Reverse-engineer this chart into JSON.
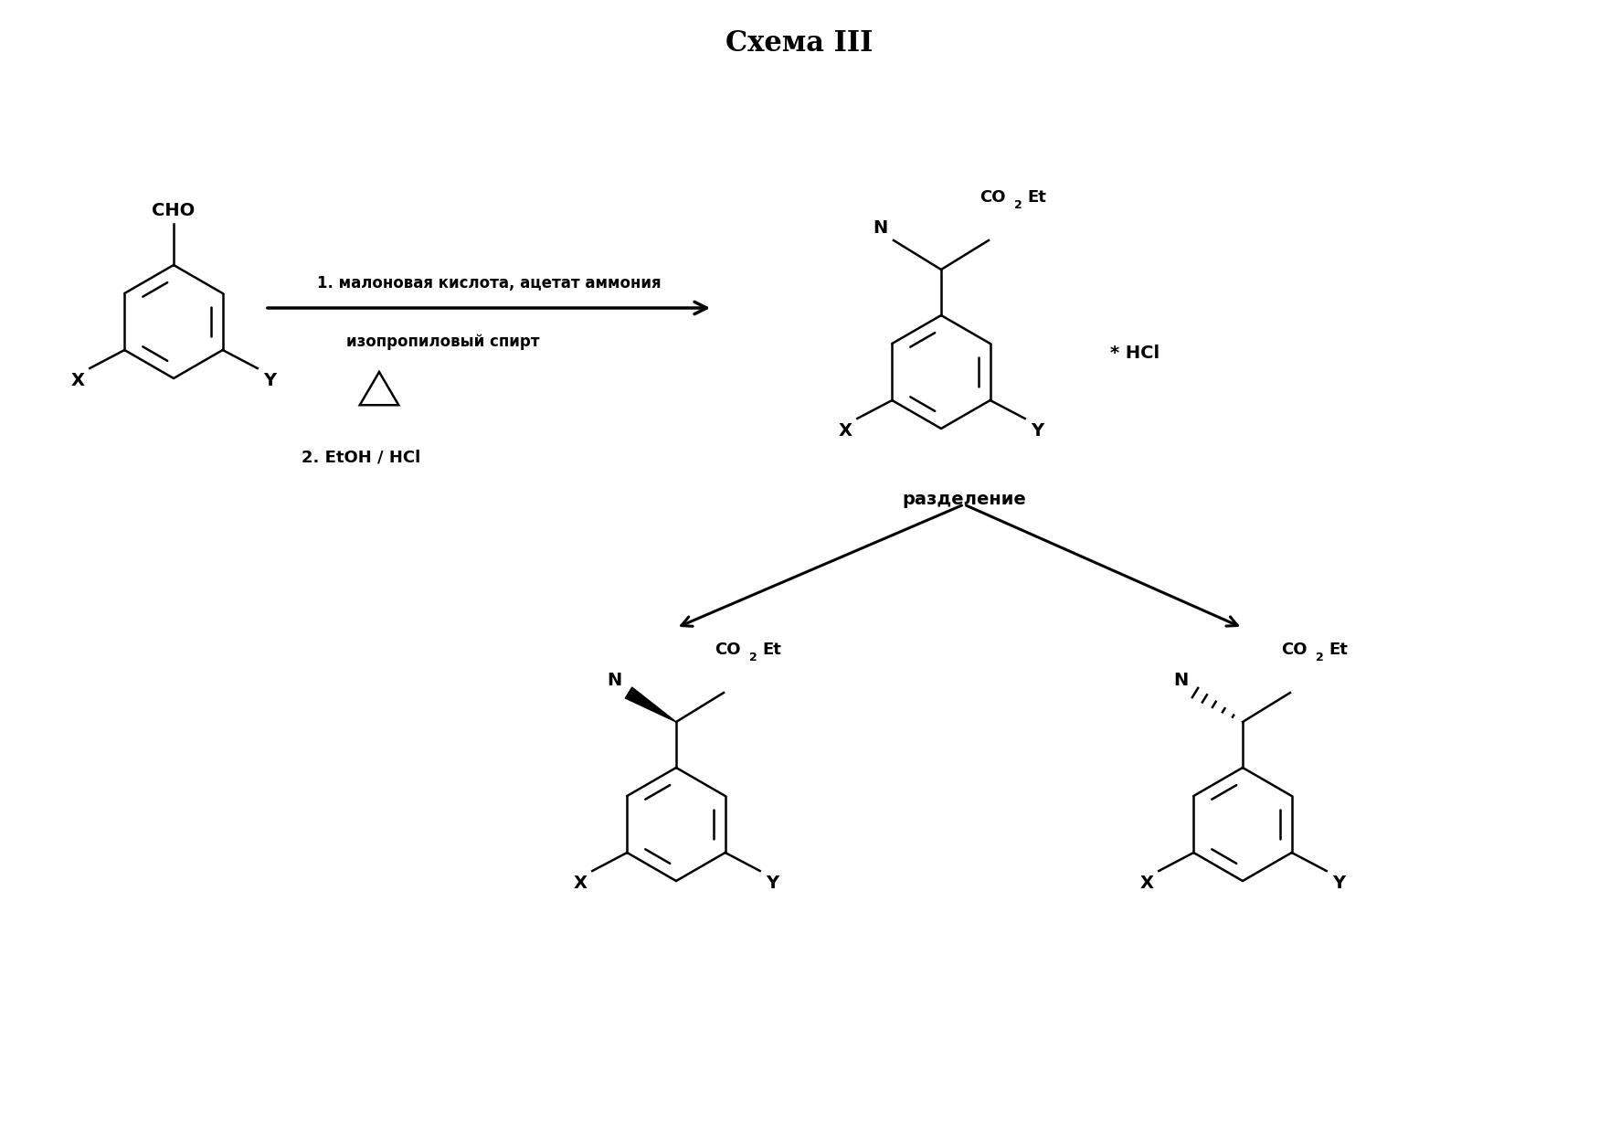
{
  "title": "Схема III",
  "title_fontsize": 22,
  "bg_color": "#ffffff",
  "text_color": "#000000",
  "arrow_color": "#000000",
  "reaction_label_line1": "1. малоновая кислота, ацетат аммония",
  "reaction_label_line2": "изопропиловый спирт",
  "reaction_label_line3": "2. EtOH / HCl",
  "separation_label": "разделение",
  "hcl_label": "* HCl",
  "lw": 1.8,
  "lw_arrow": 2.2,
  "ring_r": 0.62,
  "font_main": 14,
  "font_small": 9,
  "font_label": 13
}
